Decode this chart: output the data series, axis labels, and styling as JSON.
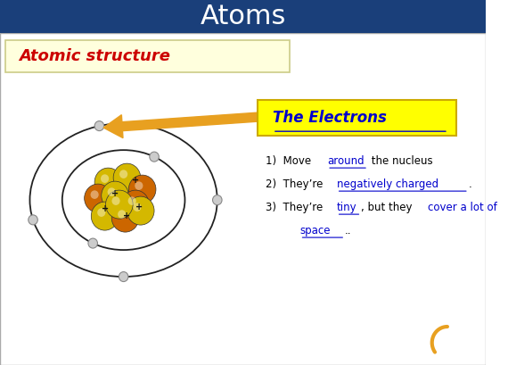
{
  "title": "Atoms",
  "title_bg": "#1a3f7a",
  "title_color": "#ffffff",
  "title_fontsize": 22,
  "bg_color": "#ffffff",
  "subtitle_text": "Atomic structure",
  "subtitle_bg": "#ffffdd",
  "subtitle_border": "#cccc88",
  "subtitle_color": "#cc0000",
  "electron_label": "The Electrons",
  "electron_label_bg": "#ffff00",
  "electron_label_color": "#0000cc",
  "link_color": "#0000cc",
  "text_color": "#000000",
  "nucleus_color_yellow": "#d4b800",
  "nucleus_color_orange": "#cc6600",
  "arrow_color": "#e8a020",
  "electron_color": "#cccccc",
  "electron_edge": "#888888"
}
